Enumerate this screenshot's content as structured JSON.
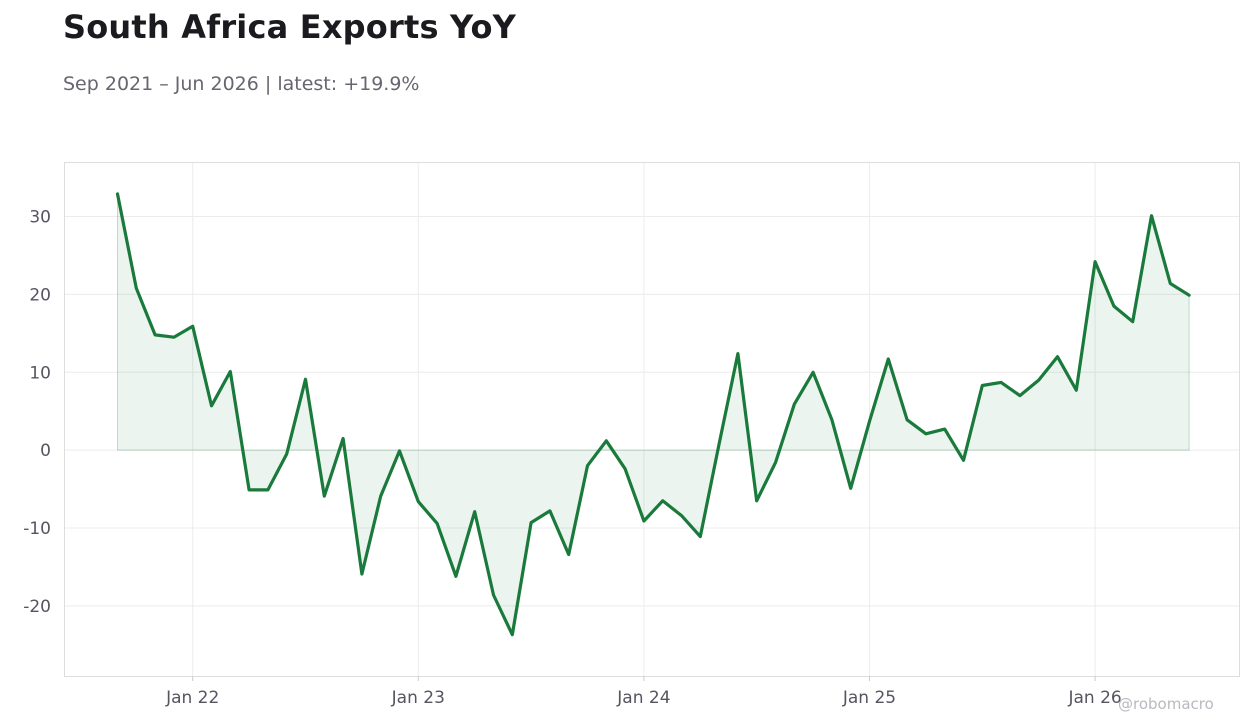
{
  "header": {
    "title": "South Africa Exports YoY",
    "subtitle": "Sep 2021 – Jun 2026 | latest: +19.9%"
  },
  "watermark": "@robomacro",
  "colors": {
    "line": "#1a7a3c",
    "fill": "#1a7a3c",
    "grid": "#ececec",
    "frame": "#dddddd"
  },
  "chart_data": {
    "type": "area",
    "title": "South Africa Exports YoY",
    "subtitle": "Sep 2021 – Jun 2026 | latest: +19.9%",
    "xlabel": "",
    "ylabel": "",
    "x_start": "2021-09",
    "x_end": "2026-06",
    "ylim": [
      -29,
      37
    ],
    "y_ticks": [
      30,
      20,
      10,
      0,
      -10,
      -20
    ],
    "y_tick_labels": [
      "30",
      "20",
      "10",
      "0",
      "-10",
      "-20"
    ],
    "x_ticks": [
      "2022-01",
      "2023-01",
      "2024-01",
      "2025-01",
      "2026-01"
    ],
    "x_tick_labels": [
      "Jan 22",
      "Jan 23",
      "Jan 24",
      "Jan 25",
      "Jan 26"
    ],
    "grid": true,
    "series": [
      {
        "dates": [
          "2021-09",
          "2021-10",
          "2021-11",
          "2021-12",
          "2022-01",
          "2022-02",
          "2022-03",
          "2022-04",
          "2022-05",
          "2022-06",
          "2022-07",
          "2022-08",
          "2022-09",
          "2022-10",
          "2022-11",
          "2022-12",
          "2023-01",
          "2023-02",
          "2023-03",
          "2023-04",
          "2023-05",
          "2023-06",
          "2023-07",
          "2023-08",
          "2023-09",
          "2023-10",
          "2023-11",
          "2023-12",
          "2024-01",
          "2024-02",
          "2024-03",
          "2024-04",
          "2024-05",
          "2024-06",
          "2024-07",
          "2024-08",
          "2024-09",
          "2024-10",
          "2024-11",
          "2024-12",
          "2025-01",
          "2025-02",
          "2025-03",
          "2025-04",
          "2025-05",
          "2025-06",
          "2025-07",
          "2025-08",
          "2025-09",
          "2025-10",
          "2025-11",
          "2025-12",
          "2026-01",
          "2026-02",
          "2026-03",
          "2026-04",
          "2026-05",
          "2026-06"
        ],
        "values": [
          32.9,
          20.8,
          14.8,
          14.5,
          15.9,
          5.7,
          10.1,
          -5.1,
          -5.1,
          -0.5,
          9.1,
          -5.9,
          1.5,
          -15.9,
          -5.9,
          -0.1,
          -6.6,
          -9.4,
          -16.2,
          -7.9,
          -18.6,
          -23.7,
          -9.3,
          -7.8,
          -13.4,
          -2.0,
          1.2,
          -2.4,
          -9.1,
          -6.5,
          -8.4,
          -11.1,
          0.8,
          12.4,
          -6.5,
          -1.6,
          5.9,
          10.0,
          3.9,
          -4.9,
          3.7,
          11.7,
          3.9,
          2.1,
          2.7,
          -1.3,
          8.3,
          8.7,
          7.0,
          9.0,
          12.0,
          7.7,
          24.2,
          18.5,
          16.5,
          30.1,
          21.4,
          19.9
        ]
      }
    ]
  }
}
